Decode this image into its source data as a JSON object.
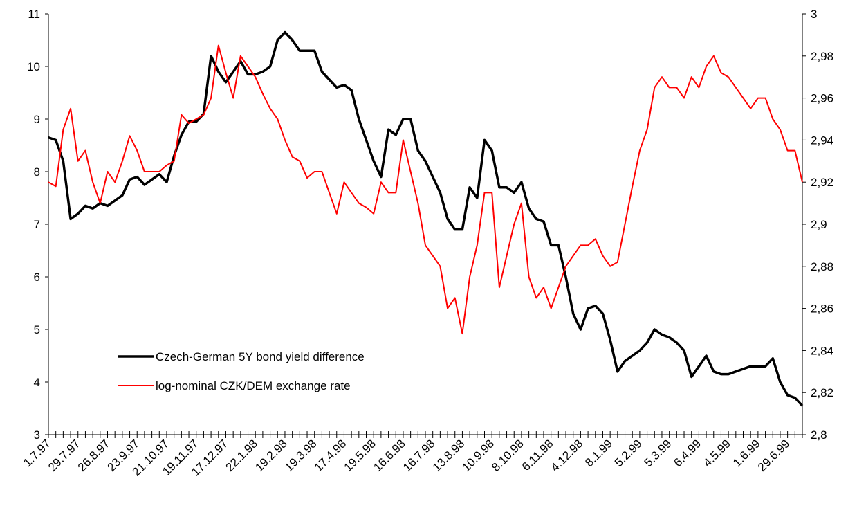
{
  "chart_data": {
    "type": "line",
    "categories": [
      "1.7.97",
      null,
      null,
      null,
      "29.7.97",
      null,
      null,
      null,
      "26.8.97",
      null,
      null,
      null,
      "23.9.97",
      null,
      null,
      null,
      "21.10.97",
      null,
      null,
      null,
      "19.11.97",
      null,
      null,
      null,
      "17.12.97",
      null,
      null,
      null,
      "22.1.98",
      null,
      null,
      null,
      "19.2.98",
      null,
      null,
      null,
      "19.3.98",
      null,
      null,
      null,
      "17.4.98",
      null,
      null,
      null,
      "19.5.98",
      null,
      null,
      null,
      "16.6.98",
      null,
      null,
      null,
      "16.7.98",
      null,
      null,
      null,
      "13.8.98",
      null,
      null,
      null,
      "10.9.98",
      null,
      null,
      null,
      "8.10.98",
      null,
      null,
      null,
      "6.11.98",
      null,
      null,
      null,
      "4.12.98",
      null,
      null,
      null,
      "8.1.99",
      null,
      null,
      null,
      "5.2.99",
      null,
      null,
      null,
      "5.3.99",
      null,
      null,
      null,
      "6.4.99",
      null,
      null,
      null,
      "4.5.99",
      null,
      null,
      null,
      "1.6.99",
      null,
      null,
      null,
      "29.6.99",
      null,
      null
    ],
    "series": [
      {
        "name": "Czech-German 5Y bond yield difference",
        "color": "#000000",
        "axis": "y",
        "values": [
          8.65,
          8.6,
          8.2,
          7.1,
          7.2,
          7.35,
          7.3,
          7.4,
          7.35,
          7.45,
          7.55,
          7.85,
          7.9,
          7.75,
          7.85,
          7.95,
          7.8,
          8.3,
          8.7,
          8.95,
          8.95,
          9.1,
          10.2,
          9.9,
          9.7,
          9.9,
          10.1,
          9.85,
          9.85,
          9.9,
          10.0,
          10.5,
          10.65,
          10.5,
          10.3,
          10.3,
          10.3,
          9.9,
          9.75,
          9.6,
          9.65,
          9.55,
          9.0,
          8.6,
          8.2,
          7.9,
          8.8,
          8.7,
          9.0,
          9.0,
          8.4,
          8.2,
          7.9,
          7.6,
          7.1,
          6.9,
          6.9,
          7.7,
          7.5,
          8.6,
          8.4,
          7.7,
          7.7,
          7.6,
          7.8,
          7.3,
          7.1,
          7.05,
          6.6,
          6.6,
          6.0,
          5.3,
          5.0,
          5.4,
          5.45,
          5.3,
          4.8,
          4.2,
          4.4,
          4.5,
          4.6,
          4.75,
          5.0,
          4.9,
          4.85,
          4.75,
          4.6,
          4.1,
          4.3,
          4.5,
          4.2,
          4.15,
          4.15,
          4.2,
          4.25,
          4.3,
          4.3,
          4.3,
          4.45,
          4.0,
          3.75,
          3.7,
          3.55
        ]
      },
      {
        "name": "log-nominal CZK/DEM exchange rate",
        "color": "#ff0000",
        "axis": "y2",
        "values": [
          2.92,
          2.918,
          2.945,
          2.955,
          2.93,
          2.935,
          2.92,
          2.91,
          2.925,
          2.92,
          2.93,
          2.942,
          2.935,
          2.925,
          2.925,
          2.925,
          2.928,
          2.93,
          2.952,
          2.948,
          2.95,
          2.952,
          2.96,
          2.985,
          2.972,
          2.96,
          2.98,
          2.975,
          2.97,
          2.962,
          2.955,
          2.95,
          2.94,
          2.932,
          2.93,
          2.922,
          2.925,
          2.925,
          2.915,
          2.905,
          2.92,
          2.915,
          2.91,
          2.908,
          2.905,
          2.92,
          2.915,
          2.915,
          2.94,
          2.925,
          2.91,
          2.89,
          2.885,
          2.88,
          2.86,
          2.865,
          2.848,
          2.875,
          2.89,
          2.915,
          2.915,
          2.87,
          2.885,
          2.9,
          2.91,
          2.875,
          2.865,
          2.87,
          2.86,
          2.87,
          2.88,
          2.885,
          2.89,
          2.89,
          2.893,
          2.885,
          2.88,
          2.882,
          2.9,
          2.918,
          2.935,
          2.945,
          2.965,
          2.97,
          2.965,
          2.965,
          2.96,
          2.97,
          2.965,
          2.975,
          2.98,
          2.972,
          2.97,
          2.965,
          2.96,
          2.955,
          2.96,
          2.96,
          2.95,
          2.945,
          2.935,
          2.935,
          2.92
        ]
      }
    ],
    "ylim": [
      3,
      11
    ],
    "yticks": [
      3,
      4,
      5,
      6,
      7,
      8,
      9,
      10,
      11
    ],
    "y2lim": [
      2.8,
      3
    ],
    "y2ticks": [
      {
        "value": 2.8,
        "label": "2,8"
      },
      {
        "value": 2.82,
        "label": "2,82"
      },
      {
        "value": 2.84,
        "label": "2,84"
      },
      {
        "value": 2.86,
        "label": "2,86"
      },
      {
        "value": 2.88,
        "label": "2,88"
      },
      {
        "value": 2.9,
        "label": "2,9"
      },
      {
        "value": 2.92,
        "label": "2,92"
      },
      {
        "value": 2.94,
        "label": "2,94"
      },
      {
        "value": 2.96,
        "label": "2,96"
      },
      {
        "value": 2.98,
        "label": "2,98"
      },
      3
    ],
    "grid": false,
    "legend": "lower left"
  }
}
